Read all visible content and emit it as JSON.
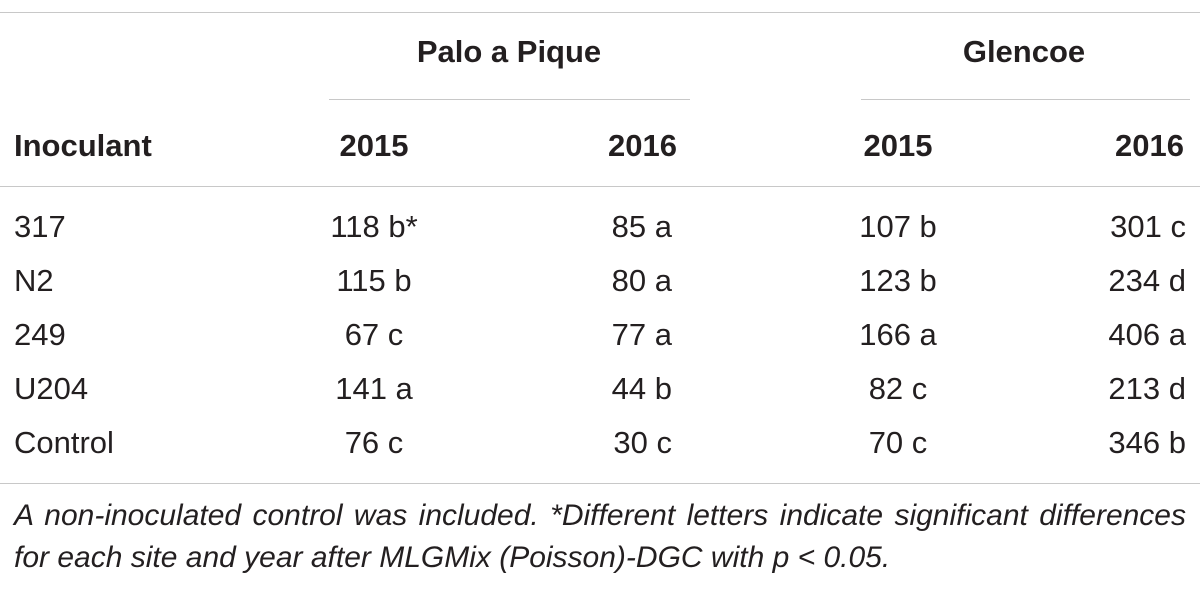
{
  "table": {
    "group_headers": [
      "Palo a Pique",
      "Glencoe"
    ],
    "row_header_label": "Inoculant",
    "year_headers": [
      "2015",
      "2016",
      "2015",
      "2016"
    ],
    "rows": [
      {
        "inoculant": "317",
        "values": [
          "118 b*",
          "85 a",
          "107 b",
          "301 c"
        ]
      },
      {
        "inoculant": "N2",
        "values": [
          "115 b",
          "80 a",
          "123 b",
          "234 d"
        ]
      },
      {
        "inoculant": "249",
        "values": [
          "67 c",
          "77 a",
          "166 a",
          "406 a"
        ]
      },
      {
        "inoculant": "U204",
        "values": [
          "141 a",
          "44 b",
          "82 c",
          "213 d"
        ]
      },
      {
        "inoculant": "Control",
        "values": [
          "76 c",
          "30 c",
          "70 c",
          "346 b"
        ]
      }
    ]
  },
  "footnote": "A non-inoculated control was included. *Different letters indicate significant differences for each site and year after MLGMix (Poisson)-DGC with p < 0.05."
}
